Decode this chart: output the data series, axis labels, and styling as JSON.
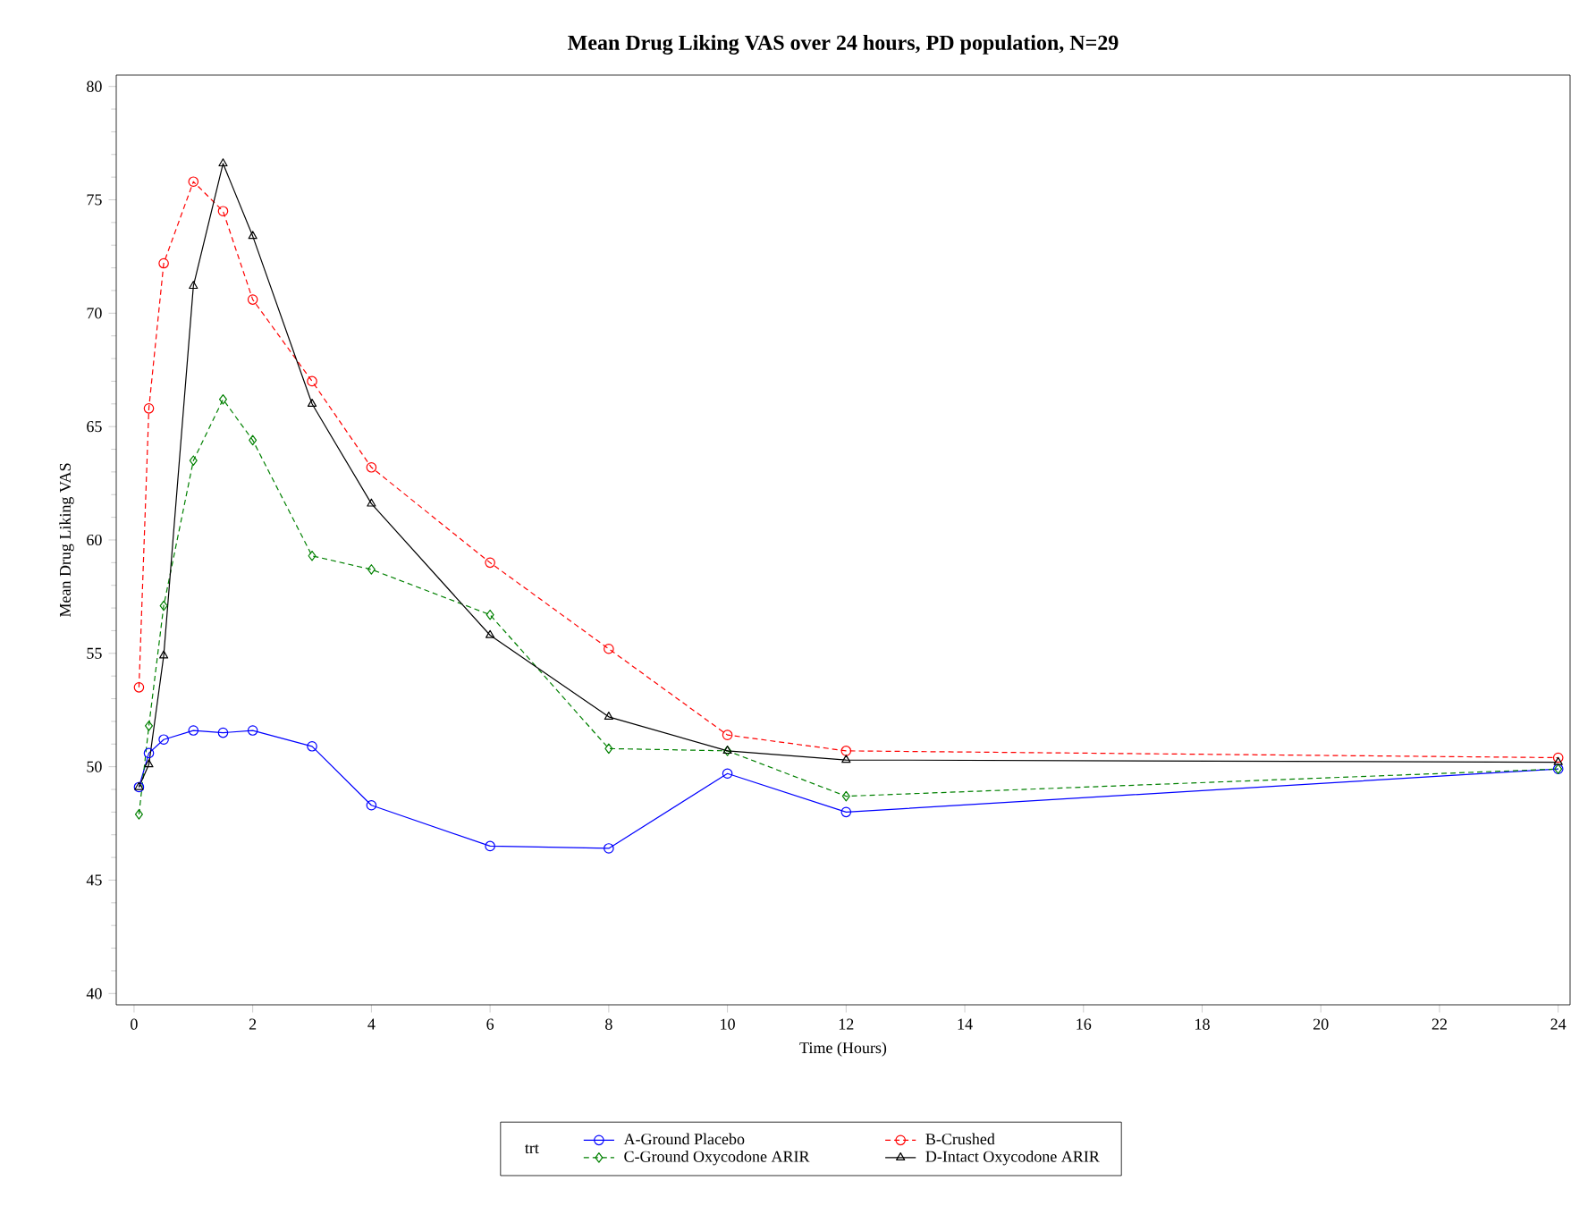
{
  "chart_data": {
    "type": "line",
    "title": "Mean Drug Liking VAS over 24 hours, PD population, N=29",
    "xlabel": "Time (Hours)",
    "ylabel": "Mean Drug Liking VAS",
    "legend_title": "trt",
    "legend": "bottom",
    "xlim": [
      -0.3,
      24.2
    ],
    "ylim": [
      39.5,
      80.5
    ],
    "xticks": [
      0,
      2,
      4,
      6,
      8,
      10,
      12,
      14,
      16,
      18,
      20,
      22,
      24
    ],
    "yticks": [
      40,
      45,
      50,
      55,
      60,
      65,
      70,
      75,
      80
    ],
    "x": [
      0.083,
      0.25,
      0.5,
      1,
      1.5,
      2,
      3,
      4,
      6,
      8,
      10,
      12,
      24
    ],
    "series": [
      {
        "name": "A-Ground Placebo",
        "color": "#0000ff",
        "marker": "circle",
        "line_style": "solid",
        "values": [
          49.1,
          50.6,
          51.2,
          51.6,
          51.5,
          51.6,
          50.9,
          48.3,
          46.5,
          46.4,
          49.7,
          48.0,
          49.9
        ]
      },
      {
        "name": "B-Crushed",
        "color": "#ff0000",
        "marker": "circle",
        "line_style": "dashed",
        "values": [
          53.5,
          65.8,
          72.2,
          75.8,
          74.5,
          70.6,
          67.0,
          63.2,
          59.0,
          55.2,
          51.4,
          50.7,
          50.4
        ]
      },
      {
        "name": "C-Ground Oxycodone ARIR",
        "color": "#008000",
        "marker": "diamond",
        "line_style": "dashed",
        "values": [
          47.9,
          51.8,
          57.1,
          63.5,
          66.2,
          64.4,
          59.3,
          58.7,
          56.7,
          50.8,
          50.7,
          48.7,
          49.9
        ]
      },
      {
        "name": "D-Intact Oxycodone ARIR",
        "color": "#000000",
        "marker": "triangle",
        "line_style": "solid",
        "values": [
          49.1,
          50.1,
          54.9,
          71.2,
          76.6,
          73.4,
          66.0,
          61.6,
          55.8,
          52.2,
          50.7,
          50.3,
          50.2
        ]
      }
    ]
  }
}
